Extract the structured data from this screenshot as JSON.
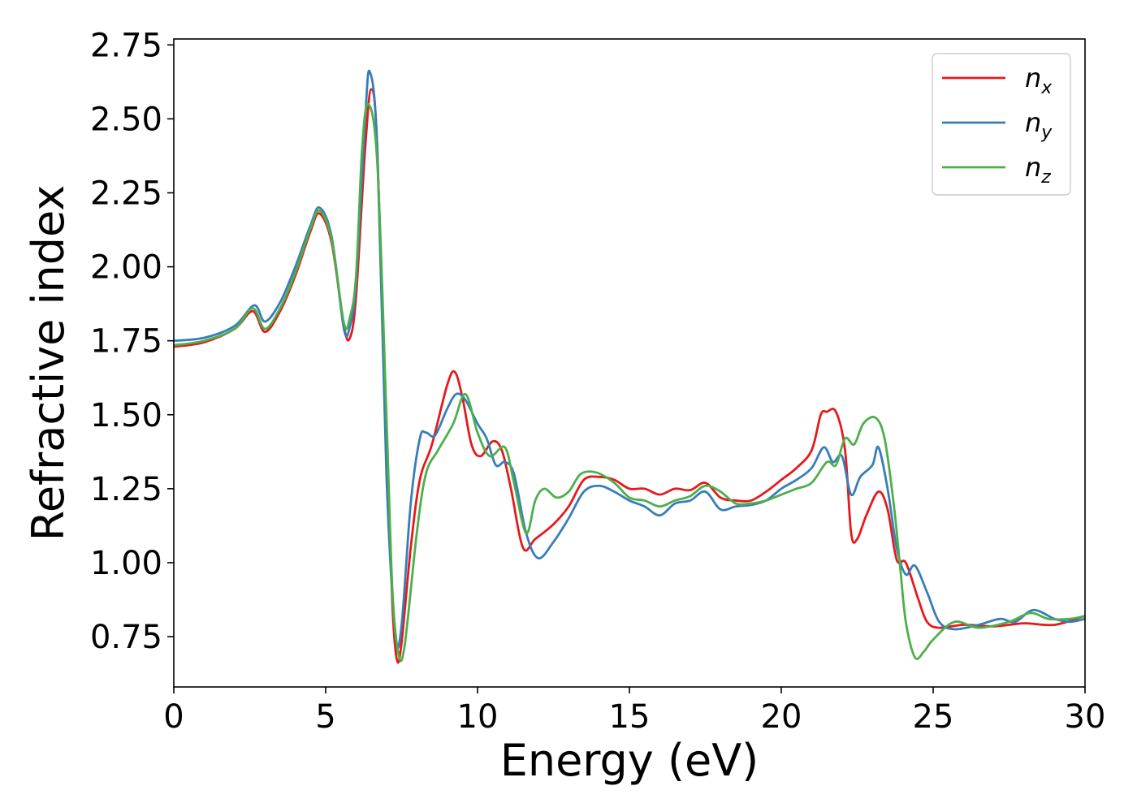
{
  "chart_data": {
    "type": "line",
    "title": "",
    "xlabel": "Energy (eV)",
    "ylabel": "Refractive index",
    "xlim": [
      0,
      30
    ],
    "ylim": [
      0.58,
      2.77
    ],
    "xticks": [
      0,
      5,
      10,
      15,
      20,
      25,
      30
    ],
    "xtick_labels": [
      "0",
      "5",
      "10",
      "15",
      "20",
      "25",
      "30"
    ],
    "yticks": [
      0.75,
      1.0,
      1.25,
      1.5,
      1.75,
      2.0,
      2.25,
      2.5,
      2.75
    ],
    "ytick_labels": [
      "0.75",
      "1.00",
      "1.25",
      "1.50",
      "1.75",
      "2.00",
      "2.25",
      "2.50",
      "2.75"
    ],
    "grid": false,
    "legend_position": "top-right",
    "series": [
      {
        "name": "n",
        "subscript": "x",
        "color": "#e41a1c",
        "points": [
          [
            0,
            1.73
          ],
          [
            1,
            1.745
          ],
          [
            2,
            1.79
          ],
          [
            2.6,
            1.85
          ],
          [
            3.0,
            1.78
          ],
          [
            3.5,
            1.85
          ],
          [
            4.0,
            1.97
          ],
          [
            4.5,
            2.12
          ],
          [
            4.8,
            2.18
          ],
          [
            5.2,
            2.08
          ],
          [
            5.6,
            1.8
          ],
          [
            5.8,
            1.76
          ],
          [
            6.0,
            1.9
          ],
          [
            6.3,
            2.4
          ],
          [
            6.5,
            2.6
          ],
          [
            6.7,
            2.4
          ],
          [
            7.0,
            1.4
          ],
          [
            7.2,
            0.85
          ],
          [
            7.35,
            0.67
          ],
          [
            7.5,
            0.73
          ],
          [
            7.8,
            1.05
          ],
          [
            8.1,
            1.28
          ],
          [
            8.5,
            1.4
          ],
          [
            9.0,
            1.6
          ],
          [
            9.25,
            1.645
          ],
          [
            9.5,
            1.56
          ],
          [
            9.8,
            1.4
          ],
          [
            10.1,
            1.36
          ],
          [
            10.5,
            1.41
          ],
          [
            10.8,
            1.38
          ],
          [
            11.1,
            1.25
          ],
          [
            11.5,
            1.05
          ],
          [
            11.9,
            1.08
          ],
          [
            12.5,
            1.13
          ],
          [
            13.0,
            1.19
          ],
          [
            13.5,
            1.28
          ],
          [
            14.0,
            1.29
          ],
          [
            14.5,
            1.28
          ],
          [
            15.0,
            1.25
          ],
          [
            15.5,
            1.25
          ],
          [
            16.0,
            1.23
          ],
          [
            16.5,
            1.25
          ],
          [
            17.0,
            1.245
          ],
          [
            17.5,
            1.27
          ],
          [
            18.0,
            1.22
          ],
          [
            18.5,
            1.21
          ],
          [
            19.0,
            1.21
          ],
          [
            19.5,
            1.24
          ],
          [
            20.0,
            1.28
          ],
          [
            20.5,
            1.32
          ],
          [
            21.0,
            1.38
          ],
          [
            21.3,
            1.5
          ],
          [
            21.5,
            1.51
          ],
          [
            21.8,
            1.51
          ],
          [
            22.1,
            1.38
          ],
          [
            22.3,
            1.1
          ],
          [
            22.5,
            1.08
          ],
          [
            22.8,
            1.16
          ],
          [
            23.2,
            1.24
          ],
          [
            23.5,
            1.18
          ],
          [
            23.8,
            1.01
          ],
          [
            24.1,
            1.0
          ],
          [
            24.5,
            0.88
          ],
          [
            24.8,
            0.8
          ],
          [
            25.2,
            0.78
          ],
          [
            26,
            0.79
          ],
          [
            27,
            0.785
          ],
          [
            28,
            0.795
          ],
          [
            29,
            0.79
          ],
          [
            30,
            0.82
          ]
        ]
      },
      {
        "name": "n",
        "subscript": "y",
        "color": "#377eb8",
        "points": [
          [
            0,
            1.75
          ],
          [
            1,
            1.76
          ],
          [
            2,
            1.8
          ],
          [
            2.65,
            1.87
          ],
          [
            3.0,
            1.815
          ],
          [
            3.5,
            1.88
          ],
          [
            4.0,
            2.0
          ],
          [
            4.5,
            2.14
          ],
          [
            4.8,
            2.2
          ],
          [
            5.2,
            2.1
          ],
          [
            5.6,
            1.79
          ],
          [
            5.8,
            1.8
          ],
          [
            6.0,
            1.95
          ],
          [
            6.3,
            2.5
          ],
          [
            6.45,
            2.66
          ],
          [
            6.7,
            2.4
          ],
          [
            7.0,
            1.3
          ],
          [
            7.3,
            0.76
          ],
          [
            7.5,
            0.79
          ],
          [
            7.8,
            1.2
          ],
          [
            8.1,
            1.42
          ],
          [
            8.3,
            1.44
          ],
          [
            8.6,
            1.43
          ],
          [
            9.0,
            1.52
          ],
          [
            9.3,
            1.57
          ],
          [
            9.6,
            1.55
          ],
          [
            10.0,
            1.47
          ],
          [
            10.3,
            1.42
          ],
          [
            10.6,
            1.33
          ],
          [
            10.9,
            1.34
          ],
          [
            11.2,
            1.3
          ],
          [
            11.6,
            1.1
          ],
          [
            12.0,
            1.015
          ],
          [
            12.5,
            1.07
          ],
          [
            13.0,
            1.15
          ],
          [
            13.5,
            1.24
          ],
          [
            14.0,
            1.26
          ],
          [
            14.5,
            1.24
          ],
          [
            15.0,
            1.21
          ],
          [
            15.5,
            1.19
          ],
          [
            16.0,
            1.16
          ],
          [
            16.5,
            1.2
          ],
          [
            17.0,
            1.21
          ],
          [
            17.5,
            1.24
          ],
          [
            18.0,
            1.18
          ],
          [
            18.5,
            1.19
          ],
          [
            19.0,
            1.195
          ],
          [
            19.5,
            1.21
          ],
          [
            20.0,
            1.25
          ],
          [
            20.5,
            1.28
          ],
          [
            21.0,
            1.32
          ],
          [
            21.4,
            1.39
          ],
          [
            21.7,
            1.34
          ],
          [
            22.0,
            1.36
          ],
          [
            22.3,
            1.23
          ],
          [
            22.6,
            1.29
          ],
          [
            23.0,
            1.33
          ],
          [
            23.2,
            1.39
          ],
          [
            23.5,
            1.25
          ],
          [
            23.8,
            1.05
          ],
          [
            24.1,
            0.96
          ],
          [
            24.4,
            0.99
          ],
          [
            24.8,
            0.9
          ],
          [
            25.2,
            0.8
          ],
          [
            25.7,
            0.775
          ],
          [
            26.5,
            0.79
          ],
          [
            27.2,
            0.81
          ],
          [
            27.7,
            0.8
          ],
          [
            28.3,
            0.84
          ],
          [
            29.0,
            0.81
          ],
          [
            29.5,
            0.8
          ],
          [
            30,
            0.81
          ]
        ]
      },
      {
        "name": "n",
        "subscript": "z",
        "color": "#4daf4a",
        "points": [
          [
            0,
            1.735
          ],
          [
            1,
            1.75
          ],
          [
            2,
            1.79
          ],
          [
            2.6,
            1.86
          ],
          [
            3.0,
            1.79
          ],
          [
            3.5,
            1.86
          ],
          [
            4.0,
            1.98
          ],
          [
            4.5,
            2.13
          ],
          [
            4.8,
            2.19
          ],
          [
            5.2,
            2.09
          ],
          [
            5.6,
            1.81
          ],
          [
            5.8,
            1.83
          ],
          [
            6.0,
            1.97
          ],
          [
            6.2,
            2.4
          ],
          [
            6.4,
            2.55
          ],
          [
            6.7,
            2.35
          ],
          [
            7.0,
            1.5
          ],
          [
            7.2,
            0.9
          ],
          [
            7.4,
            0.69
          ],
          [
            7.6,
            0.72
          ],
          [
            8.0,
            1.1
          ],
          [
            8.3,
            1.3
          ],
          [
            8.7,
            1.38
          ],
          [
            9.2,
            1.47
          ],
          [
            9.6,
            1.57
          ],
          [
            10.0,
            1.44
          ],
          [
            10.4,
            1.36
          ],
          [
            10.9,
            1.39
          ],
          [
            11.2,
            1.27
          ],
          [
            11.6,
            1.1
          ],
          [
            11.9,
            1.21
          ],
          [
            12.2,
            1.25
          ],
          [
            12.6,
            1.22
          ],
          [
            13.0,
            1.24
          ],
          [
            13.4,
            1.3
          ],
          [
            13.9,
            1.305
          ],
          [
            14.5,
            1.27
          ],
          [
            15.0,
            1.22
          ],
          [
            15.5,
            1.21
          ],
          [
            16.0,
            1.19
          ],
          [
            16.5,
            1.21
          ],
          [
            17.0,
            1.225
          ],
          [
            17.5,
            1.26
          ],
          [
            18.0,
            1.24
          ],
          [
            18.5,
            1.2
          ],
          [
            19.0,
            1.2
          ],
          [
            19.5,
            1.21
          ],
          [
            20.0,
            1.23
          ],
          [
            20.5,
            1.25
          ],
          [
            21.0,
            1.27
          ],
          [
            21.5,
            1.34
          ],
          [
            21.8,
            1.33
          ],
          [
            22.1,
            1.42
          ],
          [
            22.4,
            1.4
          ],
          [
            22.7,
            1.47
          ],
          [
            23.1,
            1.49
          ],
          [
            23.4,
            1.42
          ],
          [
            23.7,
            1.2
          ],
          [
            23.9,
            1.0
          ],
          [
            24.1,
            0.8
          ],
          [
            24.4,
            0.68
          ],
          [
            24.7,
            0.7
          ],
          [
            25.0,
            0.74
          ],
          [
            25.7,
            0.8
          ],
          [
            26.5,
            0.78
          ],
          [
            27.5,
            0.8
          ],
          [
            28.2,
            0.83
          ],
          [
            28.8,
            0.81
          ],
          [
            29.5,
            0.81
          ],
          [
            30,
            0.82
          ]
        ]
      }
    ]
  }
}
